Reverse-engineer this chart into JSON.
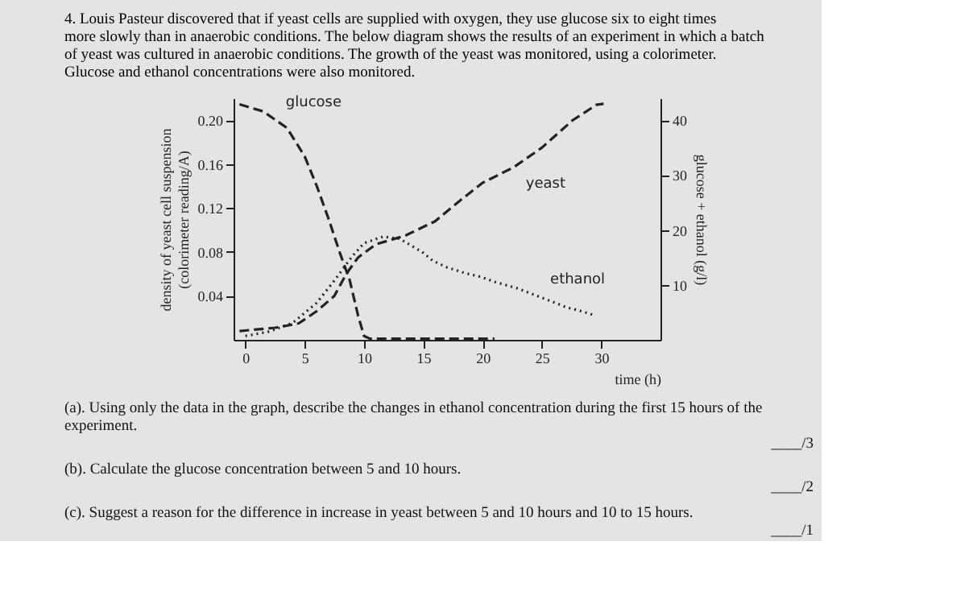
{
  "chart_data": {
    "type": "line",
    "title": "4. Louis Pasteur discovered that if yeast cells are supplied with oxygen, they use glucose six to eight times more slowly than in anaerobic conditions. The below diagram shows the results of an experiment in which a batch of yeast was cultured in anaerobic conditions. The growth of the yeast was monitored, using a colorimeter. Glucose and ethanol concentrations were also monitored.",
    "xlabel": "time (h)",
    "ylabel": "density of yeast cell suspension (colorimeter reading/A)",
    "y2label": "glucose + ethanol (g/l)",
    "xlim": [
      -1,
      35
    ],
    "xticks": [
      0,
      5,
      10,
      15,
      20,
      25,
      30
    ],
    "ylim": [
      0,
      0.22
    ],
    "yticks": [
      {
        "value": 0.04,
        "label": "0.04"
      },
      {
        "value": 0.08,
        "label": "0.08"
      },
      {
        "value": 0.12,
        "label": "0.12"
      },
      {
        "value": 0.16,
        "label": "0.16"
      },
      {
        "value": 0.2,
        "label": "0.20"
      }
    ],
    "y2lim": [
      0,
      44
    ],
    "y2ticks": [
      10,
      20,
      30,
      40
    ],
    "grid": false,
    "marker": "none",
    "series": [
      {
        "name": "yeast",
        "color": "#222222",
        "line_style": "dashed",
        "x": [
          -0.5,
          2.5,
          4.5,
          6,
          7.5,
          8.5,
          9.5,
          11,
          13.5,
          16,
          18,
          20,
          22.6,
          25,
          27.6,
          29.6,
          30.2
        ],
        "values": [
          0.008,
          0.011,
          0.015,
          0.026,
          0.04,
          0.06,
          0.075,
          0.087,
          0.095,
          0.108,
          0.126,
          0.143,
          0.157,
          0.175,
          0.2,
          0.214,
          0.215
        ]
      },
      {
        "name": "glucose",
        "color": "#222222",
        "line_style": "dashed",
        "axis": "y2",
        "x": [
          -0.5,
          1.5,
          3.5,
          5,
          6,
          7,
          8,
          8.8,
          9.5,
          10,
          10.5,
          21
        ],
        "values": [
          42.9,
          41.6,
          38.6,
          33.4,
          28.1,
          22.1,
          15.6,
          10.8,
          4.4,
          0.7,
          0.2,
          0.2
        ]
      },
      {
        "name": "ethanol",
        "color": "#222222",
        "line_style": "dotted",
        "axis": "y2",
        "x": [
          0,
          2,
          4,
          6,
          7.5,
          9,
          10,
          11.6,
          13,
          14.9,
          15.8,
          17,
          18.6,
          19.8,
          21.1,
          22.9,
          25.7,
          27.1,
          28.2,
          29.4
        ],
        "values": [
          0.7,
          1.5,
          3.1,
          6.7,
          10.8,
          15.2,
          17.6,
          18.8,
          18.4,
          16,
          14.4,
          13.2,
          12.1,
          11.5,
          10.5,
          9.4,
          7.1,
          5.9,
          5.3,
          4.5
        ]
      }
    ],
    "annotations": [
      "(a). Using only the data in the graph, describe the changes in ethanol concentration during the first 15 hours of the experiment.",
      "____/3",
      "(b). Calculate the glucose concentration between 5 and 10 hours.",
      "____/2",
      "(c). Suggest a reason for the difference in increase in yeast between 5 and 10 hours and 10 to 15 hours.",
      "____/1"
    ]
  }
}
